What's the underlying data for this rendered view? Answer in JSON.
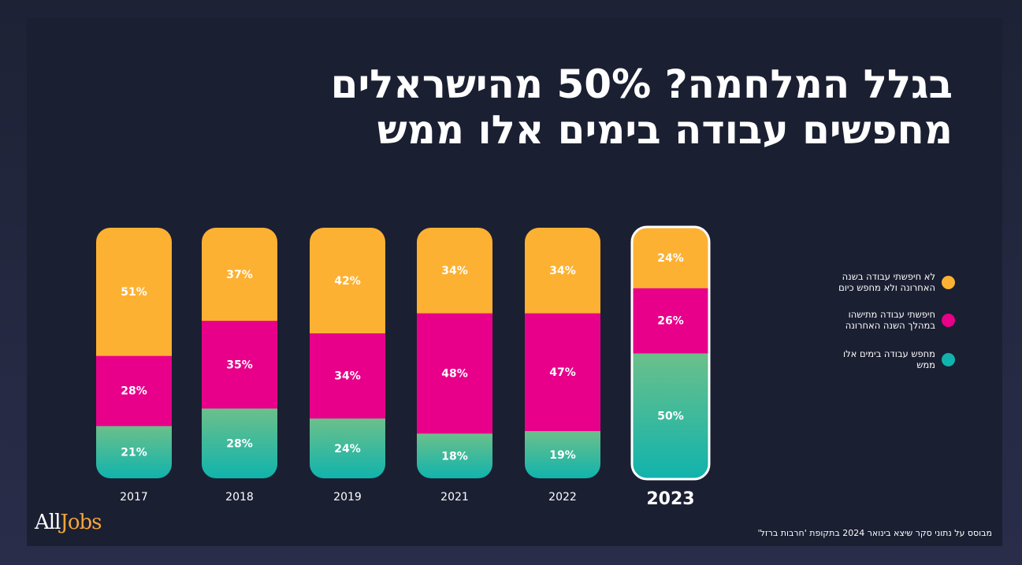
{
  "title": {
    "line1": "בגלל המלחמה? 50% מהישראלים",
    "line2": "מחפשים עבודה בימים אלו ממש"
  },
  "colors": {
    "not_searching": "#fdb133",
    "searched_last_year": "#e8008a",
    "searching_now_top": "#6cc08a",
    "searching_now_bottom": "#10b3ad"
  },
  "legend": [
    {
      "label": "לא חיפשתי עבודה בשנה האחרונה ולא מחפש כיום",
      "color": "#fdb133"
    },
    {
      "label": "חיפשתי עבודה מתישהו במהלך השנה האחרונה",
      "color": "#e8008a"
    },
    {
      "label": "מחפש עבודה בימים אלו ממש",
      "color": "#10b3ad"
    }
  ],
  "chart_data": {
    "type": "bar",
    "stacked": true,
    "categories": [
      "2017",
      "2018",
      "2019",
      "2021",
      "2022",
      "2023"
    ],
    "highlight": "2023",
    "series": [
      {
        "name": "מחפש עבודה בימים אלו ממש",
        "values": [
          21,
          28,
          24,
          18,
          19,
          50
        ]
      },
      {
        "name": "חיפשתי עבודה מתישהו במהלך השנה האחרונה",
        "values": [
          28,
          35,
          34,
          48,
          47,
          26
        ]
      },
      {
        "name": "לא חיפשתי עבודה בשנה האחרונה ולא מחפש כיום",
        "values": [
          51,
          37,
          42,
          34,
          34,
          24
        ]
      }
    ],
    "value_suffix": "%",
    "ylim": [
      0,
      100
    ]
  },
  "logo": {
    "part1": "All",
    "part2": "Jobs"
  },
  "footnote": "מבוסס על נתוני סקר שיצא בינואר 2024 בתקופת 'חרבות ברזל'"
}
